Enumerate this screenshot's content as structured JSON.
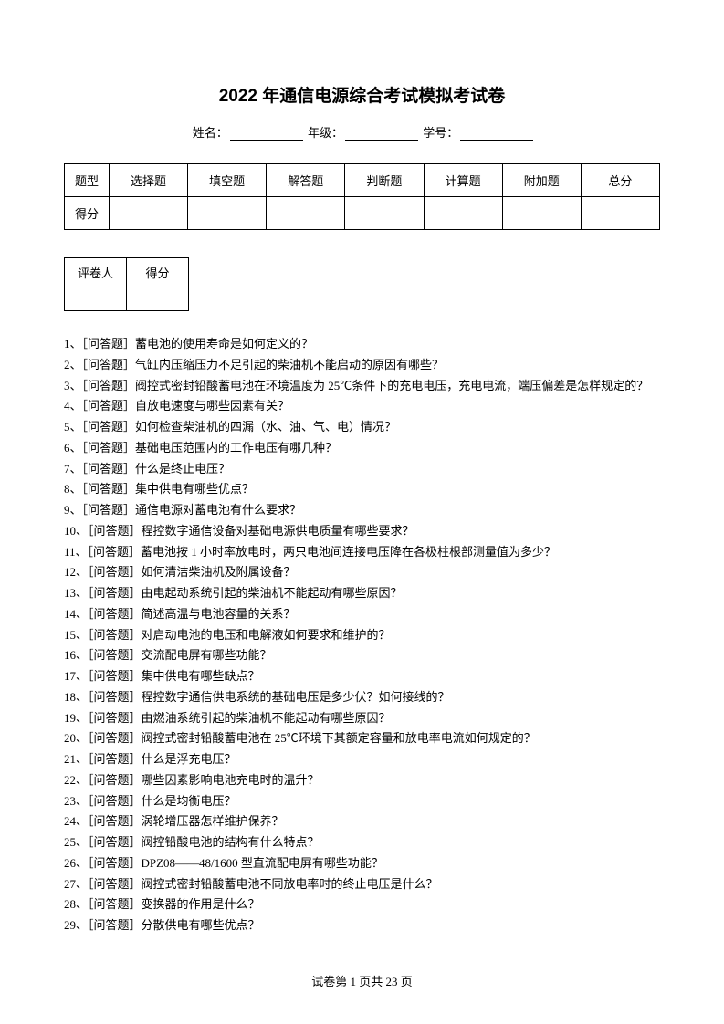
{
  "title": "2022 年通信电源综合考试模拟考试卷",
  "info": {
    "name_label": "姓名：",
    "grade_label": "年级：",
    "id_label": "学号："
  },
  "main_table": {
    "row1_header": "题型",
    "row2_header": "得分",
    "columns": [
      "选择题",
      "填空题",
      "解答题",
      "判断题",
      "计算题",
      "附加题",
      "总分"
    ]
  },
  "small_table": {
    "col1": "评卷人",
    "col2": "得分"
  },
  "questions": [
    "1、［问答题］蓄电池的使用寿命是如何定义的？",
    "2、［问答题］气缸内压缩压力不足引起的柴油机不能启动的原因有哪些？",
    "3、［问答题］阀控式密封铅酸蓄电池在环境温度为 25℃条件下的充电电压，充电电流，端压偏差是怎样规定的？",
    "4、［问答题］自放电速度与哪些因素有关？",
    "5、［问答题］如何检查柴油机的四漏（水、油、气、电）情况？",
    "6、［问答题］基础电压范围内的工作电压有哪几种？",
    "7、［问答题］什么是终止电压？",
    "8、［问答题］集中供电有哪些优点？",
    "9、［问答题］通信电源对蓄电池有什么要求？",
    "10、［问答题］程控数字通信设备对基础电源供电质量有哪些要求？",
    "11、［问答题］蓄电池按 1 小时率放电时，两只电池间连接电压降在各极柱根部测量值为多少？",
    "12、［问答题］如何清洁柴油机及附属设备？",
    "13、［问答题］由电起动系统引起的柴油机不能起动有哪些原因？",
    "14、［问答题］简述高温与电池容量的关系？",
    "15、［问答题］对启动电池的电压和电解液如何要求和维护的？",
    "16、［问答题］交流配电屏有哪些功能？",
    "17、［问答题］集中供电有哪些缺点？",
    "18、［问答题］程控数字通信供电系统的基础电压是多少伏？如何接线的？",
    "19、［问答题］由燃油系统引起的柴油机不能起动有哪些原因？",
    "20、［问答题］阀控式密封铅酸蓄电池在 25℃环境下其额定容量和放电率电流如何规定的？",
    "21、［问答题］什么是浮充电压？",
    "22、［问答题］哪些因素影响电池充电时的温升？",
    "23、［问答题］什么是均衡电压？",
    "24、［问答题］涡轮增压器怎样维护保养？",
    "25、［问答题］阀控铅酸电池的结构有什么特点？",
    "26、［问答题］DPZ08——48/1600 型直流配电屏有哪些功能？",
    "27、［问答题］阀控式密封铅酸蓄电池不同放电率时的终止电压是什么？",
    "28、［问答题］变换器的作用是什么？",
    "29、［问答题］分散供电有哪些优点？"
  ],
  "footer": {
    "text": "试卷第 1 页共 23 页"
  }
}
